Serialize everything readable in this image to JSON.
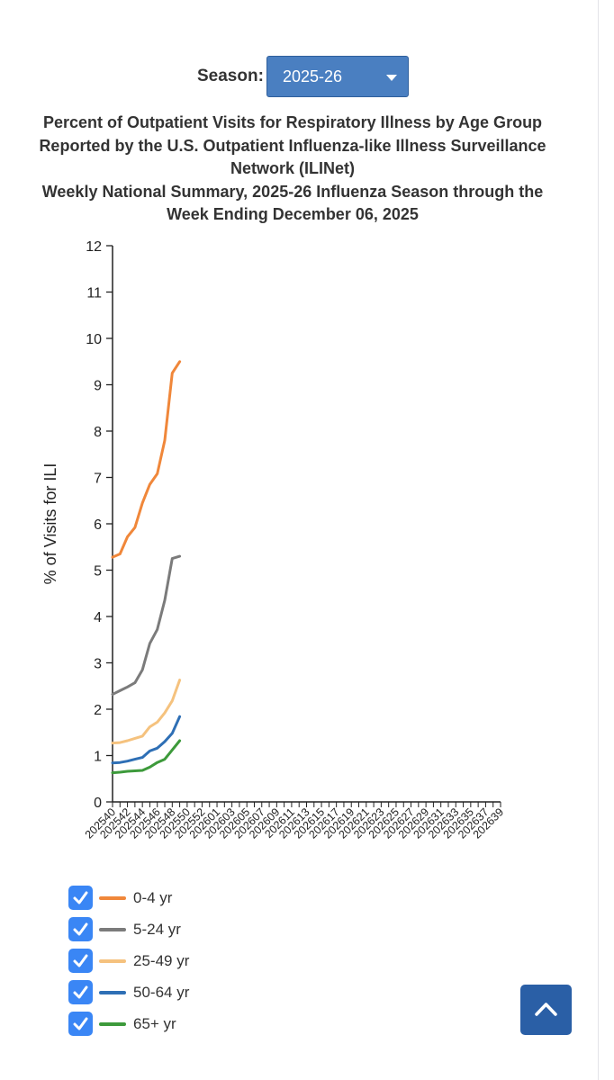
{
  "season": {
    "label": "Season:",
    "selected": "2025-26"
  },
  "title_lines": [
    "Percent of Outpatient Visits for Respiratory Illness by Age Group",
    "Reported by the U.S. Outpatient Influenza-like Illness Surveillance",
    "Network (ILINet)",
    "Weekly National Summary, 2025-26 Influenza Season through the",
    "Week Ending December 06, 2025"
  ],
  "chart_data": {
    "type": "line",
    "ylabel": "% of Visits for ILI",
    "xlabel": "",
    "ylim": [
      0,
      12
    ],
    "yticks": [
      0,
      1,
      2,
      3,
      4,
      5,
      6,
      7,
      8,
      9,
      10,
      11,
      12
    ],
    "x": [
      "202540",
      "202541",
      "202542",
      "202543",
      "202544",
      "202545",
      "202546",
      "202547",
      "202548",
      "202549"
    ],
    "xtick_labels": [
      "202540",
      "202542",
      "202544",
      "202546",
      "202548",
      "202550",
      "202552",
      "202601",
      "202603",
      "202605",
      "202607",
      "202609",
      "202611",
      "202613",
      "202615",
      "202617",
      "202619",
      "202621",
      "202623",
      "202625",
      "202627",
      "202629",
      "202631",
      "202633",
      "202635",
      "202637",
      "202639"
    ],
    "x_week_count": 53,
    "legend_position": "bottom-left",
    "series": [
      {
        "name": "0-4 yr",
        "color": "#f0873a",
        "values": [
          5.28,
          5.35,
          5.72,
          5.92,
          6.45,
          6.85,
          7.08,
          7.8,
          9.25,
          9.5
        ]
      },
      {
        "name": "5-24 yr",
        "color": "#7b7b7b",
        "values": [
          2.32,
          2.4,
          2.48,
          2.57,
          2.85,
          3.42,
          3.72,
          4.35,
          5.25,
          5.3
        ]
      },
      {
        "name": "25-49 yr",
        "color": "#f5c27e",
        "values": [
          1.27,
          1.28,
          1.32,
          1.37,
          1.42,
          1.62,
          1.72,
          1.92,
          2.18,
          2.63
        ]
      },
      {
        "name": "50-64 yr",
        "color": "#2e6fb5",
        "values": [
          0.84,
          0.85,
          0.88,
          0.92,
          0.96,
          1.1,
          1.16,
          1.3,
          1.48,
          1.84
        ]
      },
      {
        "name": "65+ yr",
        "color": "#3d9a3b",
        "values": [
          0.63,
          0.64,
          0.66,
          0.67,
          0.68,
          0.75,
          0.85,
          0.92,
          1.12,
          1.32
        ]
      }
    ]
  },
  "back_to_top": {
    "icon": "chevron-up-icon"
  }
}
